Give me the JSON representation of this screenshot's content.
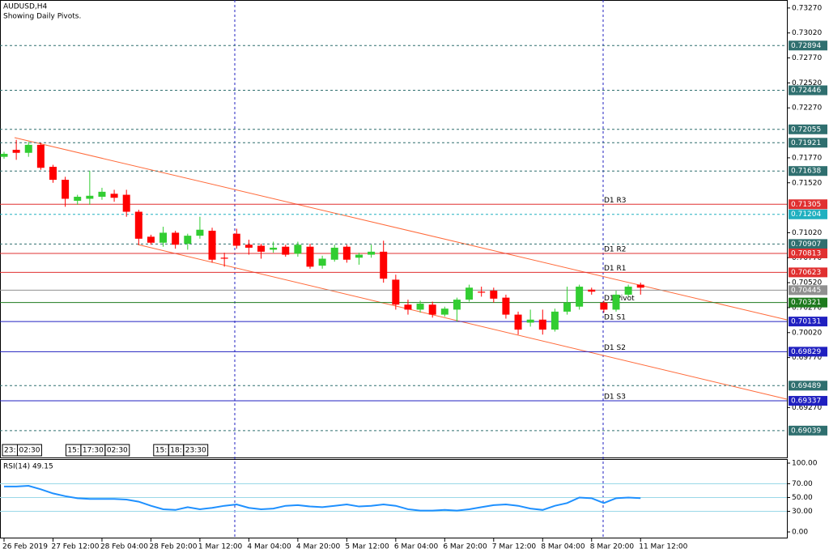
{
  "chart_data": [
    {
      "type": "candlestick",
      "title": "AUDUSD,H4",
      "subtitle": "Showing Daily Pivots.",
      "categories": [
        "26 Feb 2019",
        null,
        null,
        null,
        "27 Feb 12:00",
        null,
        null,
        null,
        "28 Feb 04:00",
        null,
        null,
        null,
        "28 Feb 20:00",
        null,
        null,
        null,
        "1 Mar 12:00",
        null,
        null,
        null,
        "4 Mar 04:00",
        null,
        null,
        null,
        "4 Mar 20:00",
        null,
        null,
        null,
        "5 Mar 12:00",
        null,
        null,
        null,
        "6 Mar 04:00",
        null,
        null,
        null,
        "6 Mar 20:00",
        null,
        null,
        null,
        "7 Mar 12:00",
        null,
        null,
        null,
        "8 Mar 04:00",
        null,
        null,
        null,
        "8 Mar 20:00",
        null,
        null,
        null,
        "11 Mar 12:00"
      ],
      "open": [
        0.7178,
        0.7185,
        0.7182,
        0.719,
        0.7168,
        0.7155,
        0.7134,
        0.7136,
        0.7138,
        0.7141,
        0.714,
        0.7123,
        0.7098,
        0.7092,
        0.7102,
        0.7091,
        0.7099,
        0.7104,
        0.7077,
        0.7101,
        0.709,
        0.7089,
        0.7085,
        0.7088,
        0.7081,
        0.7088,
        0.7069,
        0.7075,
        0.7088,
        0.7077,
        0.708,
        0.7083,
        0.7055,
        0.703,
        0.7025,
        0.703,
        0.702,
        0.7025,
        0.7035,
        0.7043,
        0.7044,
        0.7037,
        0.702,
        0.7012,
        0.7015,
        0.7005,
        0.7023,
        0.7028,
        0.7045,
        0.7032,
        0.7025,
        0.704,
        0.705
      ],
      "high": [
        0.7183,
        0.7195,
        0.7193,
        0.7192,
        0.717,
        0.7158,
        0.714,
        0.7164,
        0.7147,
        0.7145,
        0.7145,
        0.7125,
        0.71,
        0.7108,
        0.7104,
        0.7101,
        0.7118,
        0.7107,
        0.7082,
        0.7106,
        0.7095,
        0.7091,
        0.7093,
        0.709,
        0.7093,
        0.7091,
        0.7079,
        0.709,
        0.709,
        0.7082,
        0.709,
        0.7094,
        0.706,
        0.7035,
        0.7034,
        0.7033,
        0.7028,
        0.7037,
        0.705,
        0.7048,
        0.7047,
        0.704,
        0.7023,
        0.7025,
        0.7025,
        0.7026,
        0.7048,
        0.705,
        0.7047,
        0.7034,
        0.7044,
        0.705,
        0.7052
      ],
      "low": [
        0.7176,
        0.7175,
        0.7178,
        0.7165,
        0.7152,
        0.7128,
        0.713,
        0.713,
        0.7135,
        0.7133,
        0.7118,
        0.709,
        0.709,
        0.7088,
        0.7086,
        0.7085,
        0.7096,
        0.7072,
        0.7068,
        0.7086,
        0.708,
        0.7076,
        0.7082,
        0.7078,
        0.7078,
        0.7066,
        0.7066,
        0.7073,
        0.7072,
        0.707,
        0.7077,
        0.7052,
        0.7025,
        0.702,
        0.7022,
        0.7017,
        0.7018,
        0.7013,
        0.7033,
        0.7038,
        0.7032,
        0.7016,
        0.7,
        0.7008,
        0.7,
        0.7003,
        0.702,
        0.7025,
        0.704,
        0.7022,
        0.7023,
        0.7038,
        0.704
      ],
      "close": [
        0.7181,
        0.7182,
        0.719,
        0.7167,
        0.7155,
        0.7136,
        0.7138,
        0.7139,
        0.7143,
        0.7137,
        0.7123,
        0.7096,
        0.7092,
        0.7102,
        0.709,
        0.7099,
        0.7105,
        0.7075,
        0.7076,
        0.7089,
        0.7087,
        0.7083,
        0.7087,
        0.708,
        0.709,
        0.7068,
        0.7076,
        0.7087,
        0.7075,
        0.708,
        0.7083,
        0.7056,
        0.703,
        0.7025,
        0.7031,
        0.702,
        0.7026,
        0.7035,
        0.7047,
        0.7042,
        0.7036,
        0.702,
        0.7005,
        0.7015,
        0.7005,
        0.7023,
        0.7032,
        0.7048,
        0.7043,
        0.7025,
        0.704,
        0.7048,
        0.7047
      ],
      "up_color": "#32cd32",
      "down_color": "#ff0000",
      "ylim": [
        0.6877,
        0.7335
      ],
      "yticks": [
        {
          "value": 0.7327,
          "label": "0.73270"
        },
        {
          "value": 0.7302,
          "label": "0.73020"
        },
        {
          "value": 0.7277,
          "label": "0.72770"
        },
        {
          "value": 0.7252,
          "label": "0.72520"
        },
        {
          "value": 0.7227,
          "label": "0.72270"
        },
        {
          "value": 0.7177,
          "label": "0.71770"
        },
        {
          "value": 0.7152,
          "label": "0.71520"
        },
        {
          "value": 0.7102,
          "label": "0.71020"
        },
        {
          "value": 0.7077,
          "label": "0.70770"
        },
        {
          "value": 0.7052,
          "label": "0.70520"
        },
        {
          "value": 0.7027,
          "label": "0.70270"
        },
        {
          "value": 0.7002,
          "label": "0.70020"
        },
        {
          "value": 0.6977,
          "label": "0.69770"
        },
        {
          "value": 0.6927,
          "label": "0.69270"
        }
      ],
      "levels": [
        {
          "value": 0.72894,
          "color": "#2f6f6f",
          "dashed": true
        },
        {
          "value": 0.72446,
          "color": "#2f6f6f",
          "dashed": true
        },
        {
          "value": 0.72055,
          "color": "#2f6f6f",
          "dashed": true
        },
        {
          "value": 0.71921,
          "color": "#2f6f6f",
          "dashed": true
        },
        {
          "value": 0.71638,
          "color": "#2f6f6f",
          "dashed": true
        },
        {
          "value": 0.71305,
          "color": "#e03030",
          "dashed": false,
          "name": "D1 R3"
        },
        {
          "value": 0.71204,
          "color": "#20b0c0",
          "dashed": true
        },
        {
          "value": 0.70907,
          "color": "#2f6f6f",
          "dashed": true
        },
        {
          "value": 0.70813,
          "color": "#e03030",
          "dashed": false,
          "name": "D1 R2"
        },
        {
          "value": 0.70623,
          "color": "#e03030",
          "dashed": false,
          "name": "D1 R1"
        },
        {
          "value": 0.70445,
          "color": "#909090",
          "dashed": false
        },
        {
          "value": 0.70321,
          "color": "#1e7a1e",
          "dashed": false,
          "name": "D1 Pivot"
        },
        {
          "value": 0.70131,
          "color": "#2020c0",
          "dashed": false,
          "name": "D1 S1"
        },
        {
          "value": 0.69829,
          "color": "#2020c0",
          "dashed": false,
          "name": "D1 S2"
        },
        {
          "value": 0.69489,
          "color": "#2f6f6f",
          "dashed": true
        },
        {
          "value": 0.69337,
          "color": "#2020c0",
          "dashed": false,
          "name": "D1 S3"
        },
        {
          "value": 0.69039,
          "color": "#2f6f6f",
          "dashed": true
        }
      ],
      "period_labels": [
        "23:",
        "02:30",
        "15:",
        "17:30",
        "02:30",
        "15:",
        "18:",
        "23:30"
      ]
    },
    {
      "type": "line",
      "title": "RSI(14) 49.15",
      "color": "#1e90ff",
      "values": [
        66,
        66,
        67,
        62,
        56,
        52,
        49,
        48,
        48,
        48,
        47,
        44,
        38,
        33,
        32,
        36,
        33,
        35,
        38,
        40,
        35,
        33,
        34,
        38,
        39,
        37,
        36,
        38,
        40,
        37,
        38,
        40,
        38,
        33,
        31,
        31,
        32,
        31,
        33,
        36,
        39,
        40,
        38,
        34,
        32,
        38,
        42,
        50,
        49,
        42,
        49,
        50,
        49.15
      ],
      "ylim": [
        0,
        100
      ],
      "yticks": [
        {
          "value": 100,
          "label": "100.00"
        },
        {
          "value": 70,
          "label": "70.00"
        },
        {
          "value": 50,
          "label": "50.00"
        },
        {
          "value": 30,
          "label": "30.00"
        },
        {
          "value": 0,
          "label": "0.00"
        }
      ],
      "hlines": [
        70,
        50,
        30
      ]
    }
  ]
}
